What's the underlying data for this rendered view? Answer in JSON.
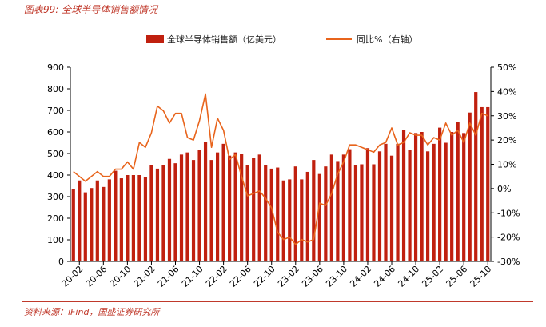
{
  "figure": {
    "title": "图表99: 全球半导体销售额情况",
    "source": "资料来源：iFind，国盛证券研究所"
  },
  "colors": {
    "bar": "#c0200f",
    "line": "#e8641c",
    "title": "#c0392b"
  },
  "chart_data": {
    "type": "bar",
    "legend": {
      "placement": "top-center",
      "bar_label": "全球半导体销售额（亿美元）",
      "line_label": "同比%（右轴）"
    },
    "x_tick_labels": [
      "20-02",
      "20-06",
      "20-10",
      "21-02",
      "21-06",
      "21-10",
      "22-02",
      "22-06",
      "22-10",
      "23-02",
      "23-06",
      "23-10",
      "24-02",
      "24-06",
      "24-10",
      "25-02",
      "25-06",
      "25-10"
    ],
    "y_left": {
      "min": 0,
      "max": 900,
      "step": 100,
      "tick_labels": [
        "0",
        "100",
        "200",
        "300",
        "400",
        "500",
        "600",
        "700",
        "800",
        "900"
      ]
    },
    "y_right": {
      "min": -30,
      "max": 50,
      "step": 10,
      "tick_labels": [
        "-30%",
        "-20%",
        "-10%",
        "0%",
        "10%",
        "20%",
        "30%",
        "40%",
        "50%"
      ]
    },
    "categories": [
      "20-01",
      "20-02",
      "20-03",
      "20-04",
      "20-05",
      "20-06",
      "20-07",
      "20-08",
      "20-09",
      "20-10",
      "20-11",
      "20-12",
      "21-01",
      "21-02",
      "21-03",
      "21-04",
      "21-05",
      "21-06",
      "21-07",
      "21-08",
      "21-09",
      "21-10",
      "21-11",
      "21-12",
      "22-01",
      "22-02",
      "22-03",
      "22-04",
      "22-05",
      "22-06",
      "22-07",
      "22-08",
      "22-09",
      "22-10",
      "22-11",
      "22-12",
      "23-01",
      "23-02",
      "23-03",
      "23-04",
      "23-05",
      "23-06",
      "23-07",
      "23-08",
      "23-09",
      "23-10",
      "23-11",
      "23-12",
      "24-01",
      "24-02",
      "24-03",
      "24-04",
      "24-05",
      "24-06",
      "24-07",
      "24-08",
      "24-09",
      "24-10",
      "24-11",
      "24-12",
      "25-01",
      "25-02",
      "25-03",
      "25-04",
      "25-05",
      "25-06",
      "25-07",
      "25-08",
      "25-09",
      "25-10"
    ],
    "series": [
      {
        "name": "全球半导体销售额（亿美元）",
        "axis": "left",
        "values": [
          335,
          375,
          320,
          340,
          375,
          345,
          380,
          420,
          385,
          400,
          400,
          400,
          390,
          445,
          430,
          445,
          475,
          455,
          495,
          505,
          470,
          515,
          555,
          470,
          505,
          545,
          490,
          505,
          500,
          445,
          480,
          495,
          445,
          430,
          435,
          375,
          380,
          440,
          380,
          415,
          470,
          405,
          440,
          495,
          465,
          495,
          520,
          445,
          450,
          525,
          450,
          510,
          545,
          490,
          545,
          610,
          515,
          595,
          600,
          510,
          545,
          620,
          550,
          600,
          645,
          595,
          690,
          785,
          715,
          715
        ]
      },
      {
        "name": "同比%（右轴）",
        "axis": "right",
        "values": [
          7,
          5,
          3,
          5,
          7,
          5,
          5,
          8,
          8,
          11,
          8,
          19,
          17,
          23,
          34,
          32,
          27,
          31,
          31,
          21,
          20,
          28,
          39,
          17,
          29,
          24,
          12,
          14,
          5,
          -3,
          -2,
          -1,
          -4,
          -8,
          -18,
          -21,
          -20,
          -23,
          -21,
          -22,
          -21,
          -6,
          -7,
          -2,
          6,
          11,
          18,
          18,
          17,
          16,
          15,
          18,
          19,
          25,
          18,
          19,
          23,
          22,
          22,
          18,
          21,
          20,
          27,
          22,
          24,
          19,
          27,
          22,
          31,
          30
        ]
      }
    ]
  }
}
